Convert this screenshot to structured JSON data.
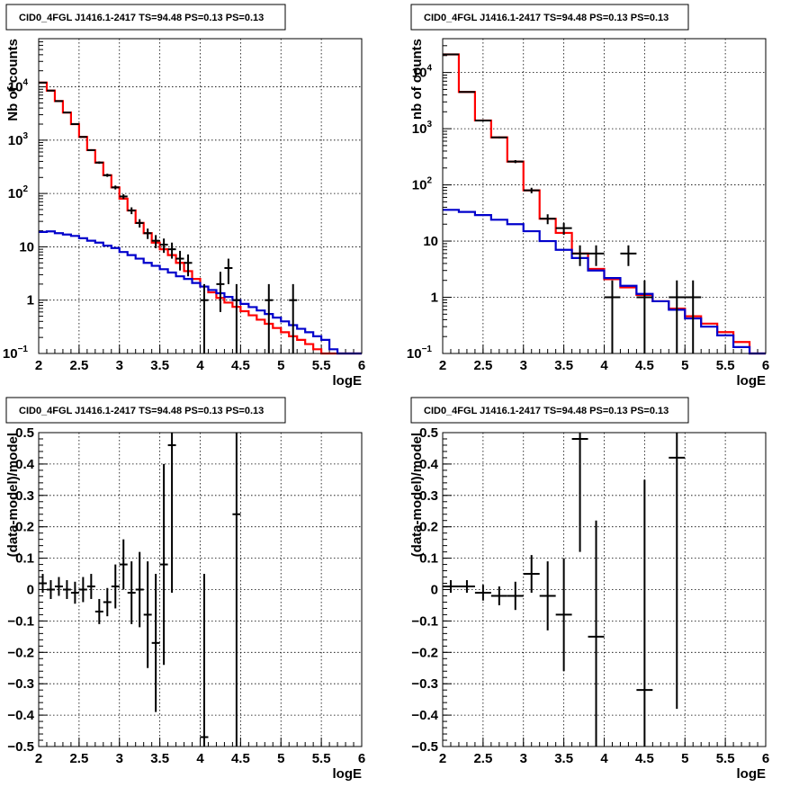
{
  "chart_data": [
    {
      "id": "counts-left",
      "type": "line",
      "title": "CID0_4FGL J1416.1-2417 TS=94.48 PS=0.13 PS=0.13",
      "xlabel": "logE",
      "ylabel": "Nb of counts",
      "yscale": "log",
      "xlim": [
        2,
        6
      ],
      "ylim": [
        0.1,
        80000
      ],
      "grid": true,
      "xticks": [
        "2",
        "2.5",
        "3",
        "3.5",
        "4",
        "4.5",
        "5",
        "5.5",
        "6"
      ],
      "yticks": [
        {
          "v": 0.1,
          "t": "10",
          "sup": "−1"
        },
        {
          "v": 1,
          "t": "1",
          "sup": ""
        },
        {
          "v": 10,
          "t": "10",
          "sup": ""
        },
        {
          "v": 100,
          "t": "10",
          "sup": "2"
        },
        {
          "v": 1000,
          "t": "10",
          "sup": "3"
        },
        {
          "v": 10000,
          "t": "10",
          "sup": "4"
        }
      ],
      "bin_edges": [
        2.0,
        2.1,
        2.2,
        2.3,
        2.4,
        2.5,
        2.6,
        2.7,
        2.8,
        2.9,
        3.0,
        3.1,
        3.2,
        3.3,
        3.4,
        3.5,
        3.6,
        3.7,
        3.8,
        3.9,
        4.0,
        4.1,
        4.2,
        4.3,
        4.4,
        4.5,
        4.6,
        4.7,
        4.8,
        4.9,
        5.0,
        5.1,
        5.2,
        5.3,
        5.4,
        5.5,
        5.6,
        5.7,
        5.8,
        5.9,
        6.0
      ],
      "series": [
        {
          "color": "#ff0000",
          "values": [
            12000,
            8500,
            5400,
            3300,
            2000,
            1150,
            650,
            380,
            220,
            130,
            80,
            48,
            28,
            18,
            12,
            9,
            7,
            5,
            3.5,
            2.5,
            1.8,
            1.4,
            1.1,
            0.9,
            0.75,
            0.62,
            0.52,
            0.43,
            0.36,
            0.3,
            0.25,
            0.21,
            0.18,
            0.15,
            0.12,
            0.1,
            0.1,
            0.1,
            0.1,
            0.1
          ]
        },
        {
          "color": "#0000cc",
          "values": [
            19,
            19.5,
            18,
            17,
            16,
            14.5,
            13,
            12,
            10.5,
            9.5,
            8,
            7,
            6,
            5,
            4.4,
            3.8,
            3.3,
            2.8,
            2.5,
            2.1,
            1.8,
            1.55,
            1.35,
            1.15,
            1.0,
            0.85,
            0.74,
            0.64,
            0.55,
            0.47,
            0.4,
            0.34,
            0.29,
            0.25,
            0.21,
            0.18,
            0.12,
            0.1,
            0.1,
            0.1
          ]
        }
      ],
      "points": [
        {
          "x": 2.05,
          "y": 12000,
          "ylo": 11800,
          "yhi": 12200
        },
        {
          "x": 2.15,
          "y": 8500,
          "ylo": 8400,
          "yhi": 8600
        },
        {
          "x": 2.25,
          "y": 5400,
          "ylo": 5300,
          "yhi": 5500
        },
        {
          "x": 2.35,
          "y": 3300,
          "ylo": 3250,
          "yhi": 3350
        },
        {
          "x": 2.45,
          "y": 2000,
          "ylo": 1950,
          "yhi": 2050
        },
        {
          "x": 2.55,
          "y": 1150,
          "ylo": 1120,
          "yhi": 1180
        },
        {
          "x": 2.65,
          "y": 650,
          "ylo": 625,
          "yhi": 675
        },
        {
          "x": 2.75,
          "y": 380,
          "ylo": 360,
          "yhi": 400
        },
        {
          "x": 2.85,
          "y": 220,
          "ylo": 205,
          "yhi": 235
        },
        {
          "x": 2.95,
          "y": 130,
          "ylo": 119,
          "yhi": 141
        },
        {
          "x": 3.05,
          "y": 88,
          "ylo": 79,
          "yhi": 97
        },
        {
          "x": 3.15,
          "y": 48,
          "ylo": 41,
          "yhi": 55
        },
        {
          "x": 3.25,
          "y": 28,
          "ylo": 23,
          "yhi": 33
        },
        {
          "x": 3.35,
          "y": 18,
          "ylo": 14,
          "yhi": 22
        },
        {
          "x": 3.45,
          "y": 13,
          "ylo": 9.4,
          "yhi": 16.6
        },
        {
          "x": 3.55,
          "y": 11,
          "ylo": 7.7,
          "yhi": 14.3
        },
        {
          "x": 3.65,
          "y": 9,
          "ylo": 6,
          "yhi": 12
        },
        {
          "x": 3.75,
          "y": 6,
          "ylo": 3.6,
          "yhi": 8.4
        },
        {
          "x": 3.85,
          "y": 5,
          "ylo": 2.8,
          "yhi": 7.2
        },
        {
          "x": 4.05,
          "y": 1,
          "ylo": 0.1,
          "yhi": 2
        },
        {
          "x": 4.25,
          "y": 2,
          "ylo": 0.6,
          "yhi": 3.4
        },
        {
          "x": 4.35,
          "y": 4,
          "ylo": 2,
          "yhi": 6
        },
        {
          "x": 4.45,
          "y": 1,
          "ylo": 0.1,
          "yhi": 2
        },
        {
          "x": 4.85,
          "y": 1,
          "ylo": 0.1,
          "yhi": 2
        },
        {
          "x": 5.15,
          "y": 1,
          "ylo": 0.1,
          "yhi": 2
        }
      ]
    },
    {
      "id": "counts-right",
      "type": "line",
      "title": "CID0_4FGL J1416.1-2417 TS=94.48 PS=0.13 PS=0.13",
      "xlabel": "logE",
      "ylabel": "nb of counts",
      "yscale": "log",
      "xlim": [
        2,
        6
      ],
      "ylim": [
        0.1,
        40000
      ],
      "grid": true,
      "xticks": [
        "2",
        "2.5",
        "3",
        "3.5",
        "4",
        "4.5",
        "5",
        "5.5",
        "6"
      ],
      "yticks": [
        {
          "v": 0.1,
          "t": "10",
          "sup": "−1"
        },
        {
          "v": 1,
          "t": "1",
          "sup": ""
        },
        {
          "v": 10,
          "t": "10",
          "sup": ""
        },
        {
          "v": 100,
          "t": "10",
          "sup": "2"
        },
        {
          "v": 1000,
          "t": "10",
          "sup": "3"
        },
        {
          "v": 10000,
          "t": "10",
          "sup": "4"
        }
      ],
      "bin_edges": [
        2.0,
        2.2,
        2.4,
        2.6,
        2.8,
        3.0,
        3.2,
        3.4,
        3.6,
        3.8,
        4.0,
        4.2,
        4.4,
        4.6,
        4.8,
        5.0,
        5.2,
        5.4,
        5.6,
        5.8,
        6.0
      ],
      "series": [
        {
          "color": "#ff0000",
          "values": [
            21000,
            4500,
            1400,
            700,
            260,
            80,
            25,
            14,
            6,
            3.2,
            2.1,
            1.5,
            1.1,
            0.85,
            0.63,
            0.46,
            0.34,
            0.24,
            0.16,
            0.1
          ]
        },
        {
          "color": "#0000cc",
          "values": [
            36,
            33,
            29,
            24,
            20,
            15,
            10,
            7,
            5,
            3,
            2.2,
            1.6,
            1.15,
            0.85,
            0.6,
            0.42,
            0.3,
            0.21,
            0.13,
            0.1
          ]
        }
      ],
      "points": [
        {
          "x": 2.1,
          "y": 21000,
          "ylo": 20800,
          "yhi": 21200
        },
        {
          "x": 2.3,
          "y": 4500,
          "ylo": 4400,
          "yhi": 4600
        },
        {
          "x": 2.5,
          "y": 1400,
          "ylo": 1360,
          "yhi": 1440
        },
        {
          "x": 2.7,
          "y": 700,
          "ylo": 675,
          "yhi": 725
        },
        {
          "x": 2.9,
          "y": 260,
          "ylo": 244,
          "yhi": 276
        },
        {
          "x": 3.1,
          "y": 80,
          "ylo": 71,
          "yhi": 89
        },
        {
          "x": 3.3,
          "y": 25,
          "ylo": 20,
          "yhi": 30
        },
        {
          "x": 3.5,
          "y": 17,
          "ylo": 12.9,
          "yhi": 21.1
        },
        {
          "x": 3.7,
          "y": 6,
          "ylo": 3.6,
          "yhi": 8.4
        },
        {
          "x": 3.9,
          "y": 6,
          "ylo": 3.6,
          "yhi": 8.4
        },
        {
          "x": 4.1,
          "y": 1,
          "ylo": 0.1,
          "yhi": 2
        },
        {
          "x": 4.3,
          "y": 6,
          "ylo": 3.6,
          "yhi": 8.4
        },
        {
          "x": 4.5,
          "y": 1,
          "ylo": 0.1,
          "yhi": 2
        },
        {
          "x": 4.9,
          "y": 1,
          "ylo": 0.1,
          "yhi": 2
        },
        {
          "x": 5.1,
          "y": 1,
          "ylo": 0.1,
          "yhi": 2
        }
      ]
    },
    {
      "id": "residuals-left",
      "type": "scatter",
      "title": "CID0_4FGL J1416.1-2417 TS=94.48 PS=0.13 PS=0.13",
      "xlabel": "logE",
      "ylabel": "(data-model)/model",
      "yscale": "linear",
      "xlim": [
        2,
        6
      ],
      "ylim": [
        -0.5,
        0.5
      ],
      "grid": true,
      "xticks": [
        "2",
        "2.5",
        "3",
        "3.5",
        "4",
        "4.5",
        "5",
        "5.5",
        "6"
      ],
      "yticks": [
        {
          "v": -0.5,
          "t": "−0.5"
        },
        {
          "v": -0.4,
          "t": "−0.4"
        },
        {
          "v": -0.3,
          "t": "−0.3"
        },
        {
          "v": -0.2,
          "t": "−0.2"
        },
        {
          "v": -0.1,
          "t": "−0.1"
        },
        {
          "v": 0,
          "t": "0"
        },
        {
          "v": 0.1,
          "t": "0.1"
        },
        {
          "v": 0.2,
          "t": "0.2"
        },
        {
          "v": 0.3,
          "t": "0.3"
        },
        {
          "v": 0.4,
          "t": "0.4"
        },
        {
          "v": 0.5,
          "t": "0.5"
        }
      ],
      "binwidth": 0.1,
      "points": [
        {
          "x": 2.05,
          "y": 0.02,
          "e": 0.03
        },
        {
          "x": 2.15,
          "y": 0.0,
          "e": 0.03
        },
        {
          "x": 2.25,
          "y": 0.01,
          "e": 0.03
        },
        {
          "x": 2.35,
          "y": 0.0,
          "e": 0.03
        },
        {
          "x": 2.45,
          "y": -0.01,
          "e": 0.035
        },
        {
          "x": 2.55,
          "y": 0.0,
          "e": 0.04
        },
        {
          "x": 2.65,
          "y": 0.01,
          "e": 0.04
        },
        {
          "x": 2.75,
          "y": -0.07,
          "e": 0.04
        },
        {
          "x": 2.85,
          "y": -0.04,
          "e": 0.045
        },
        {
          "x": 2.95,
          "y": 0.01,
          "e": 0.07
        },
        {
          "x": 3.05,
          "y": 0.08,
          "e": 0.08
        },
        {
          "x": 3.15,
          "y": -0.01,
          "e": 0.1
        },
        {
          "x": 3.25,
          "y": 0.0,
          "e": 0.12
        },
        {
          "x": 3.35,
          "y": -0.08,
          "e": 0.17
        },
        {
          "x": 3.45,
          "y": -0.17,
          "e": 0.22
        },
        {
          "x": 3.55,
          "y": 0.08,
          "e": 0.32
        },
        {
          "x": 3.65,
          "y": 0.46,
          "e": 0.47
        },
        {
          "x": 4.05,
          "y": -0.47,
          "e": 0.52
        },
        {
          "x": 4.45,
          "y": 0.24,
          "e": 0.8
        }
      ]
    },
    {
      "id": "residuals-right",
      "type": "scatter",
      "title": "CID0_4FGL J1416.1-2417 TS=94.48 PS=0.13 PS=0.13",
      "xlabel": "logE",
      "ylabel": "(data-model)/model",
      "yscale": "linear",
      "xlim": [
        2,
        6
      ],
      "ylim": [
        -0.5,
        0.5
      ],
      "grid": true,
      "xticks": [
        "2",
        "2.5",
        "3",
        "3.5",
        "4",
        "4.5",
        "5",
        "5.5",
        "6"
      ],
      "yticks": [
        {
          "v": -0.5,
          "t": "−0.5"
        },
        {
          "v": -0.4,
          "t": "−0.4"
        },
        {
          "v": -0.3,
          "t": "−0.3"
        },
        {
          "v": -0.2,
          "t": "−0.2"
        },
        {
          "v": -0.1,
          "t": "−0.1"
        },
        {
          "v": 0,
          "t": "0"
        },
        {
          "v": 0.1,
          "t": "0.1"
        },
        {
          "v": 0.2,
          "t": "0.2"
        },
        {
          "v": 0.3,
          "t": "0.3"
        },
        {
          "v": 0.4,
          "t": "0.4"
        },
        {
          "v": 0.5,
          "t": "0.5"
        }
      ],
      "binwidth": 0.2,
      "points": [
        {
          "x": 2.1,
          "y": 0.01,
          "e": 0.02
        },
        {
          "x": 2.3,
          "y": 0.01,
          "e": 0.02
        },
        {
          "x": 2.5,
          "y": -0.01,
          "e": 0.025
        },
        {
          "x": 2.7,
          "y": -0.02,
          "e": 0.03
        },
        {
          "x": 2.9,
          "y": -0.02,
          "e": 0.045
        },
        {
          "x": 3.1,
          "y": 0.05,
          "e": 0.06
        },
        {
          "x": 3.3,
          "y": -0.02,
          "e": 0.11
        },
        {
          "x": 3.5,
          "y": -0.08,
          "e": 0.18
        },
        {
          "x": 3.7,
          "y": 0.48,
          "e": 0.36
        },
        {
          "x": 3.9,
          "y": -0.15,
          "e": 0.37
        },
        {
          "x": 4.5,
          "y": -0.32,
          "e": 0.67
        },
        {
          "x": 4.9,
          "y": 0.42,
          "e": 0.8
        }
      ]
    }
  ]
}
